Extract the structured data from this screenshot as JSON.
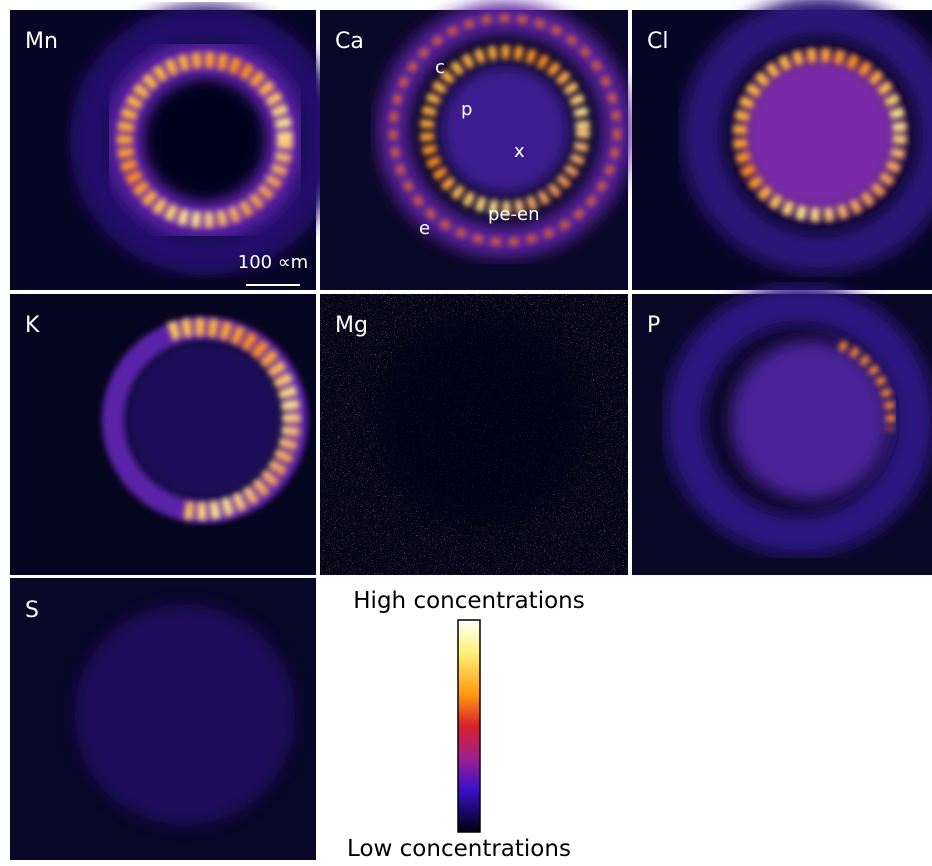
{
  "panels": [
    {
      "label": "Mn",
      "scale_bar": "100 ∝m"
    },
    {
      "label": "Ca",
      "annotations": [
        "c",
        "p",
        "x",
        "pe-en",
        "e"
      ]
    },
    {
      "label": "Cl"
    },
    {
      "label": "K"
    },
    {
      "label": "Mg"
    },
    {
      "label": "P"
    },
    {
      "label": "S"
    }
  ],
  "colorbar": {
    "high": "High concentrations",
    "low": "Low concentrations"
  }
}
